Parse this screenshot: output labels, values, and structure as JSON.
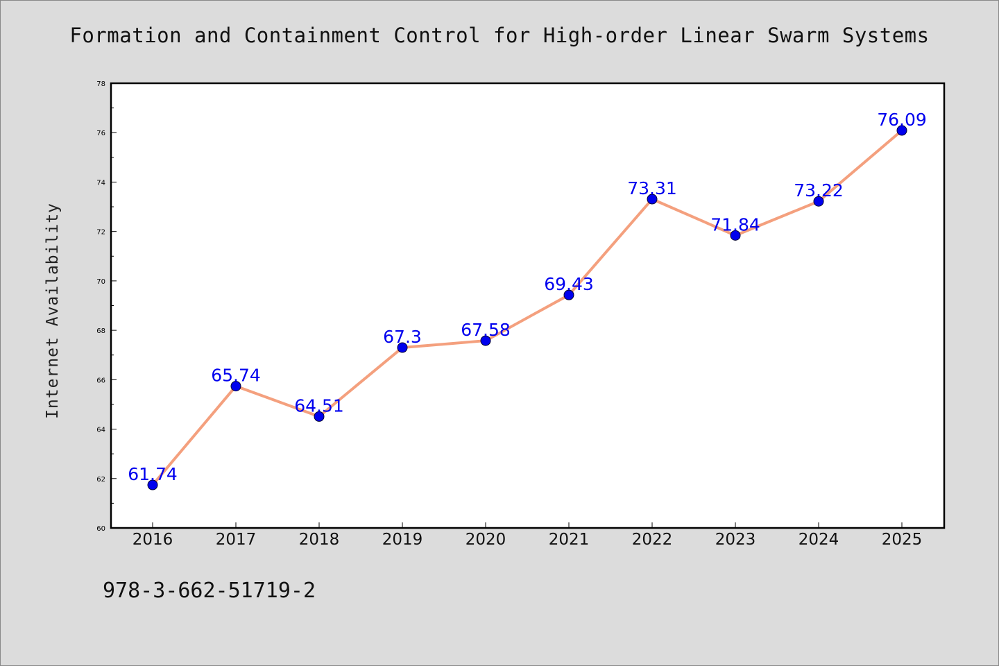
{
  "colors": {
    "background": "#dcdcdc",
    "plot_background": "#ffffff",
    "line": "#f4a07e",
    "marker": "#0000ee",
    "data_label": "#0000ee"
  },
  "footer": {
    "isbn": "978-3-662-51719-2"
  },
  "chart_data": {
    "type": "line",
    "title": "Formation and Containment Control for High-order Linear Swarm Systems",
    "xlabel": "",
    "ylabel": "Internet Availability",
    "categories": [
      "2016",
      "2017",
      "2018",
      "2019",
      "2020",
      "2021",
      "2022",
      "2023",
      "2024",
      "2025"
    ],
    "series": [
      {
        "values": [
          61.74,
          65.74,
          64.51,
          67.3,
          67.58,
          69.43,
          73.31,
          71.84,
          73.22,
          76.09
        ]
      }
    ],
    "data_labels": [
      "61.74",
      "65.74",
      "64.51",
      "67.3",
      "67.58",
      "69.43",
      "73.31",
      "71.84",
      "73.22",
      "76.09"
    ],
    "ylim": [
      60,
      78
    ],
    "yticks": [
      "60",
      "62",
      "64",
      "66",
      "68",
      "70",
      "72",
      "74",
      "76",
      "78"
    ],
    "grid": false,
    "legend": "none"
  }
}
